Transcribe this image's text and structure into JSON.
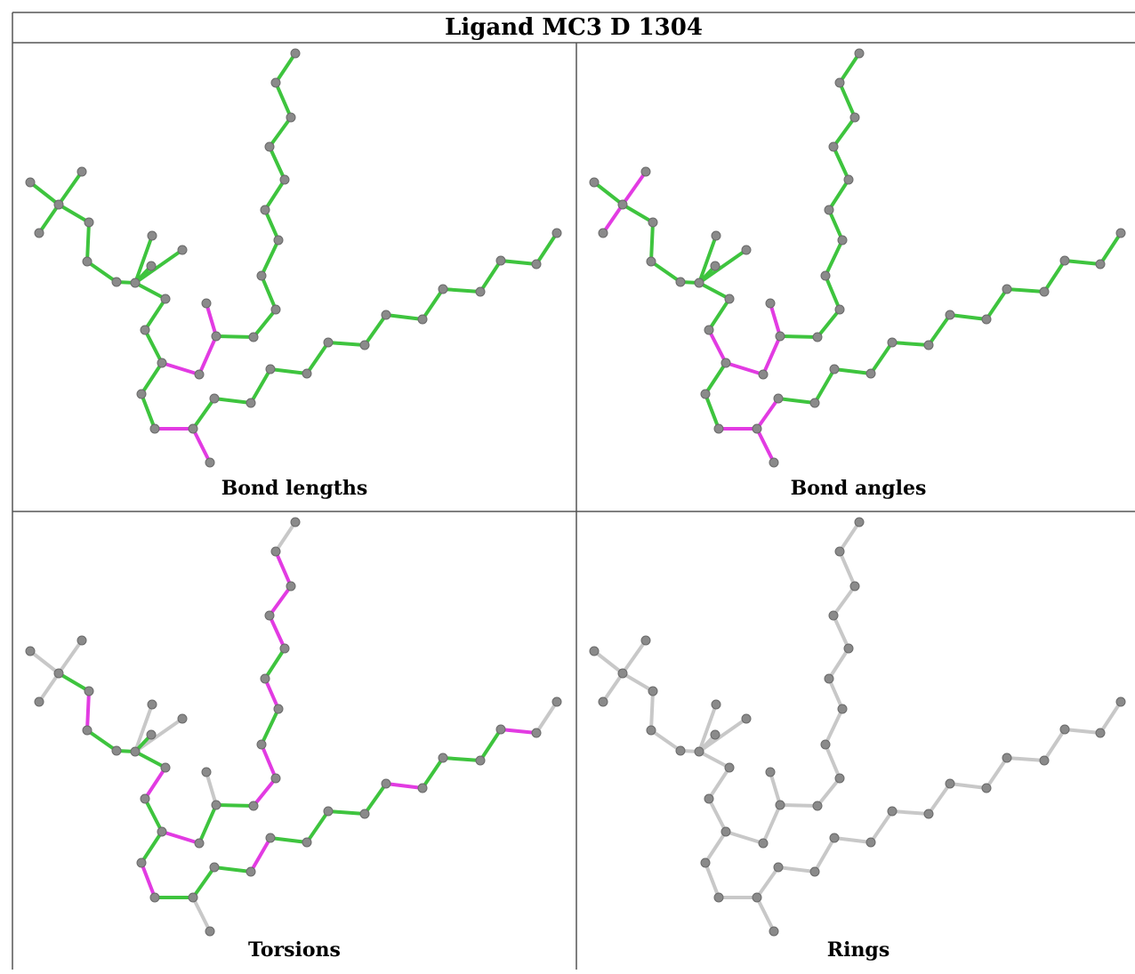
{
  "title": "Ligand MC3 D 1304",
  "panels": [
    {
      "id": "bond-lengths",
      "caption": "Bond lengths",
      "colors": {
        "ok": "#3ec43e",
        "outlier": "#e23be2",
        "none": "#c8c8c8"
      }
    },
    {
      "id": "bond-angles",
      "caption": "Bond angles"
    },
    {
      "id": "torsions",
      "caption": "Torsions"
    },
    {
      "id": "rings",
      "caption": "Rings"
    }
  ],
  "atom_color": "#8a8a8a",
  "bond_colors": {
    "green": "#3ec43e",
    "magenta": "#e23be2",
    "gray": "#c8c8c8"
  }
}
